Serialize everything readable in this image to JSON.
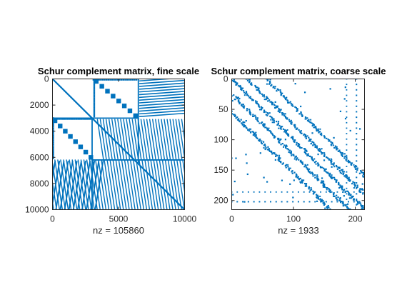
{
  "chart_data": [
    {
      "type": "spy",
      "title": "Schur complement matrix, fine scale",
      "xlabel": "nz = 105860",
      "xlim": [
        0,
        10000
      ],
      "ylim": [
        0,
        10000
      ],
      "y_reversed": true,
      "xticks": [
        0,
        5000,
        10000
      ],
      "yticks": [
        0,
        2000,
        4000,
        6000,
        8000,
        10000
      ],
      "color": "#0072BD",
      "nonzero_segments": [
        {
          "kind": "main-diagonal",
          "from": [
            0,
            0
          ],
          "to": [
            10000,
            10000
          ]
        },
        {
          "kind": "block",
          "cols": [
            6500,
            10000
          ],
          "rows": [
            0,
            3000
          ],
          "pattern": "horizontal-stripes"
        },
        {
          "kind": "block",
          "cols": [
            0,
            3100
          ],
          "rows": [
            3000,
            6200
          ],
          "pattern": "diagonal-blocks"
        },
        {
          "kind": "block",
          "cols": [
            3100,
            6500
          ],
          "rows": [
            0,
            3000
          ],
          "pattern": "diagonal-blocks"
        },
        {
          "kind": "block",
          "cols": [
            6500,
            10000
          ],
          "rows": [
            3100,
            6200
          ],
          "pattern": "dense-diagonal-bands"
        },
        {
          "kind": "block",
          "cols": [
            0,
            3100
          ],
          "rows": [
            6200,
            10000
          ],
          "pattern": "diagonal-bands"
        },
        {
          "kind": "block",
          "cols": [
            3100,
            6200
          ],
          "rows": [
            6200,
            10000
          ],
          "pattern": "dense-diagonal-bands"
        },
        {
          "kind": "border-lines",
          "cols": [
            3000,
            6500
          ],
          "rows": [
            3000,
            6500
          ]
        }
      ]
    },
    {
      "type": "spy",
      "title": "Schur complement matrix, coarse scale",
      "xlabel": "nz = 1933",
      "xlim": [
        0,
        215
      ],
      "ylim": [
        0,
        215
      ],
      "y_reversed": true,
      "xticks": [
        0,
        100,
        200
      ],
      "yticks": [
        0,
        50,
        100,
        150,
        200
      ],
      "color": "#0072BD",
      "nonzero_segments": [
        {
          "kind": "diagonal-band",
          "offset": 0
        },
        {
          "kind": "diagonal-band",
          "offset": 25
        },
        {
          "kind": "diagonal-band",
          "offset": -25
        },
        {
          "kind": "diagonal-band",
          "offset": 55
        },
        {
          "kind": "diagonal-band",
          "offset": -55
        },
        {
          "kind": "sparse-scatter",
          "approx_count": 60
        }
      ]
    }
  ]
}
